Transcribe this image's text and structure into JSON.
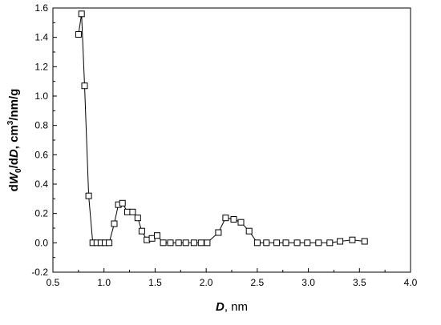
{
  "chart_data": {
    "type": "line",
    "xlabel": "D, nm",
    "ylabel": "dW0/dD, cm3/nm/g",
    "xlabel_parts": {
      "var": "D",
      "unit": ", nm"
    },
    "ylabel_parts": {
      "pre": "d",
      "var1": "W",
      "sub": "0",
      "mid": "/d",
      "var2": "D",
      "unit": ", cm",
      "sup": "3",
      "tail": "/nm/g"
    },
    "xlim": [
      0.5,
      4.0
    ],
    "ylim": [
      -0.2,
      1.6
    ],
    "xticks": [
      "0.5",
      "1.0",
      "1.5",
      "2.0",
      "2.5",
      "3.0",
      "3.5",
      "4.0"
    ],
    "yticks": [
      "-0.2",
      "0.0",
      "0.2",
      "0.4",
      "0.6",
      "0.8",
      "1.0",
      "1.2",
      "1.4",
      "1.6"
    ],
    "marker": "open-square",
    "grid": false,
    "line_color": "#000000",
    "series": [
      {
        "x": [
          0.75,
          0.78,
          0.81,
          0.85,
          0.89,
          0.93,
          0.97,
          1.01,
          1.05,
          1.1,
          1.14,
          1.18,
          1.23,
          1.28,
          1.33,
          1.37,
          1.42,
          1.47,
          1.52,
          1.58,
          1.65,
          1.73,
          1.8,
          1.88,
          1.95,
          2.01,
          2.12,
          2.19,
          2.27,
          2.34,
          2.42,
          2.5,
          2.59,
          2.69,
          2.78,
          2.89,
          2.99,
          3.1,
          3.21,
          3.31,
          3.43,
          3.55
        ],
        "y": [
          1.42,
          1.56,
          1.07,
          0.32,
          0.0,
          0.0,
          0.0,
          0.0,
          0.0,
          0.13,
          0.26,
          0.27,
          0.21,
          0.21,
          0.17,
          0.08,
          0.02,
          0.03,
          0.05,
          0.0,
          0.0,
          0.0,
          0.0,
          0.0,
          0.0,
          0.0,
          0.07,
          0.17,
          0.16,
          0.14,
          0.08,
          0.0,
          0.0,
          0.0,
          0.0,
          0.0,
          0.0,
          0.0,
          0.0,
          0.01,
          0.02,
          0.01
        ]
      }
    ]
  }
}
